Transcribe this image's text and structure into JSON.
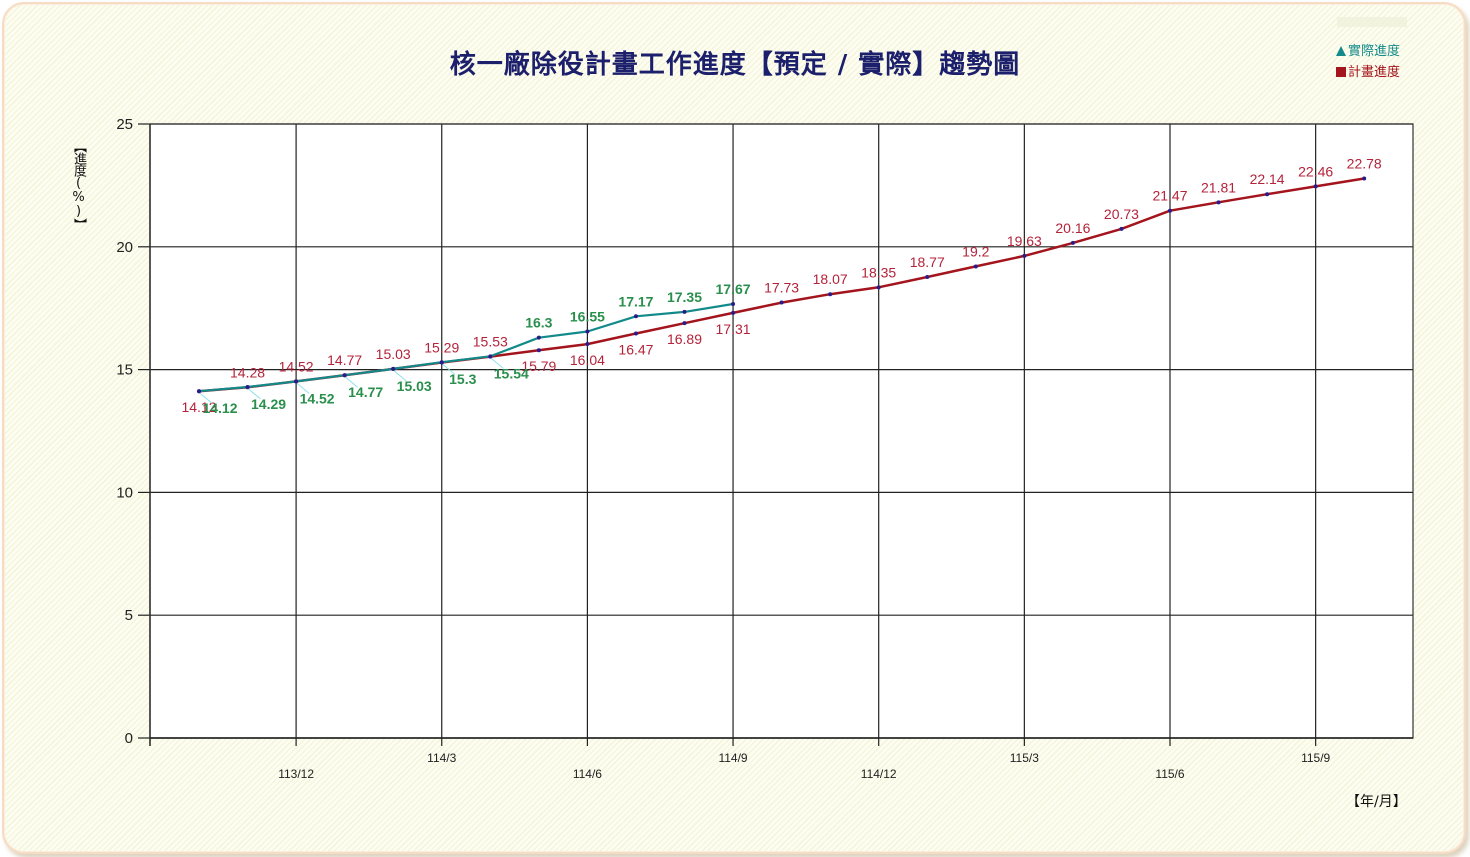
{
  "chart_data": {
    "type": "line",
    "title": "核一廠除役計畫工作進度【預定 / 實際】趨勢圖",
    "xlabel": "【年/月】",
    "ylabel": "【進度(%)】",
    "ylim": [
      0,
      25
    ],
    "yticks": [
      0,
      5,
      10,
      15,
      20,
      25
    ],
    "grid": true,
    "legend_position": "top-right",
    "x": [
      "113/10",
      "113/11",
      "113/12",
      "114/1",
      "114/2",
      "114/3",
      "114/4",
      "114/5",
      "114/6",
      "114/7",
      "114/8",
      "114/9",
      "114/10",
      "114/11",
      "114/12",
      "115/1",
      "115/2",
      "115/3",
      "115/4",
      "115/5",
      "115/6",
      "115/7",
      "115/8",
      "115/9",
      "115/10"
    ],
    "xtick_labels": [
      "113/12",
      "114/3",
      "114/6",
      "114/9",
      "114/12",
      "115/3",
      "115/6",
      "115/9"
    ],
    "series": [
      {
        "name": "計畫進度",
        "color": "#a3141c",
        "label_color": "#b4233a",
        "marker": "square",
        "values": [
          14.12,
          14.28,
          14.52,
          14.77,
          15.03,
          15.29,
          15.53,
          15.79,
          16.04,
          16.47,
          16.89,
          17.31,
          17.73,
          18.07,
          18.35,
          18.77,
          19.2,
          19.63,
          20.16,
          20.73,
          21.47,
          21.81,
          22.14,
          22.46,
          22.78
        ]
      },
      {
        "name": "實際進度",
        "color": "#138a8a",
        "label_color": "#2a8f4d",
        "marker": "triangle",
        "values": [
          14.12,
          14.29,
          14.52,
          14.77,
          15.03,
          15.3,
          15.54,
          16.3,
          16.55,
          17.17,
          17.35,
          17.67
        ]
      }
    ]
  },
  "legend": {
    "actual_label": "實際進度",
    "plan_label": "計畫進度",
    "actual_color": "#138a8a",
    "plan_color": "#a3141c"
  }
}
